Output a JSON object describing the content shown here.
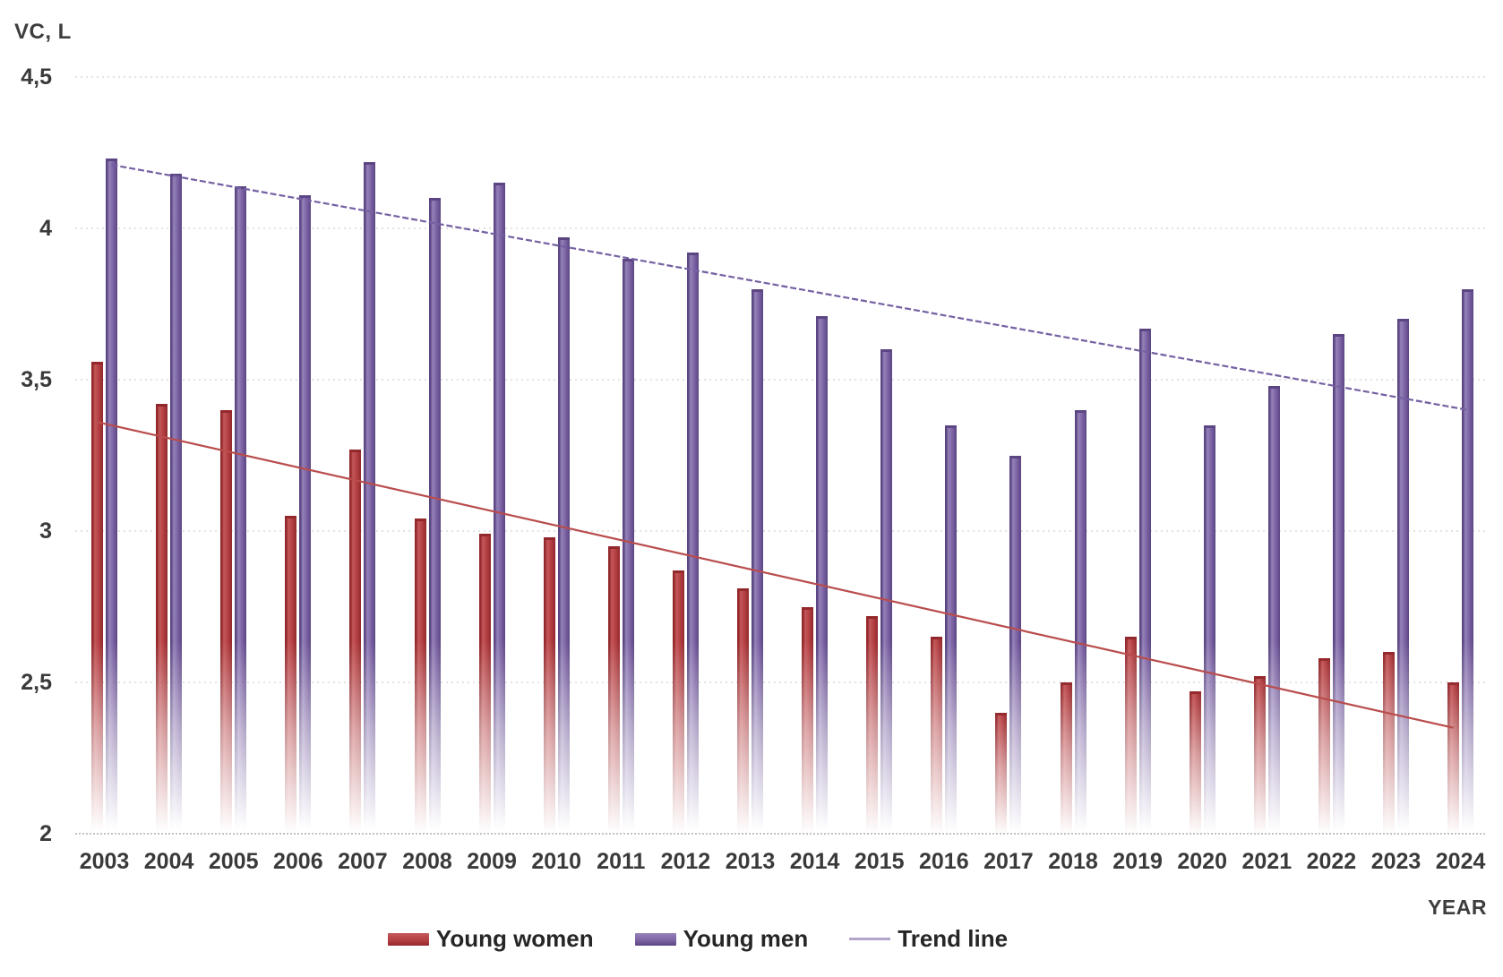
{
  "chart_data": {
    "type": "bar",
    "title": "",
    "ylabel": "VC, L",
    "xlabel": "YEAR",
    "ylim": [
      2,
      4.5
    ],
    "grid": true,
    "yticks": [
      {
        "value": 4.5,
        "label": "4,5"
      },
      {
        "value": 4.0,
        "label": "4"
      },
      {
        "value": 3.5,
        "label": "3,5"
      },
      {
        "value": 3.0,
        "label": "3"
      },
      {
        "value": 2.5,
        "label": "2,5"
      },
      {
        "value": 2.0,
        "label": "2"
      }
    ],
    "categories": [
      "2003",
      "2004",
      "2005",
      "2006",
      "2007",
      "2008",
      "2009",
      "2010",
      "2011",
      "2012",
      "2013",
      "2014",
      "2015",
      "2016",
      "2017",
      "2018",
      "2019",
      "2020",
      "2021",
      "2022",
      "2023",
      "2024"
    ],
    "series": [
      {
        "name": "Young women",
        "color": "#b54144",
        "color_dark": "#93282c",
        "color_light": "#c4585a",
        "values": [
          3.56,
          3.42,
          3.4,
          3.05,
          3.27,
          3.04,
          2.99,
          2.98,
          2.95,
          2.87,
          2.81,
          2.75,
          2.72,
          2.65,
          2.4,
          2.5,
          2.65,
          2.47,
          2.52,
          2.58,
          2.6,
          2.5
        ]
      },
      {
        "name": "Young men",
        "color": "#7e64a6",
        "color_dark": "#5b4683",
        "color_light": "#9583b8",
        "values": [
          4.23,
          4.18,
          4.14,
          4.11,
          4.22,
          4.1,
          4.15,
          3.97,
          3.9,
          3.92,
          3.8,
          3.71,
          3.6,
          3.35,
          3.25,
          3.4,
          3.67,
          3.35,
          3.48,
          3.65,
          3.7,
          3.8
        ]
      }
    ],
    "trend_lines": [
      {
        "name": "Young men trend",
        "color": "#7460a2",
        "dashed": true,
        "start_year": "2003",
        "start_value": 4.21,
        "end_year": "2024",
        "end_value": 3.4
      },
      {
        "name": "Young women trend",
        "color": "#b94c4c",
        "dashed": false,
        "start_year": "2003",
        "start_value": 3.36,
        "end_year": "2024",
        "end_value": 2.35
      }
    ],
    "legend_entries": [
      "Young women",
      "Young men",
      "Trend line"
    ],
    "legend_line_color": "#b3a5c9",
    "legend_position": "bottom",
    "gridline_color": "#dadada",
    "baseline_color": "#c2c2c2",
    "text_color": "#3a3a3a"
  }
}
